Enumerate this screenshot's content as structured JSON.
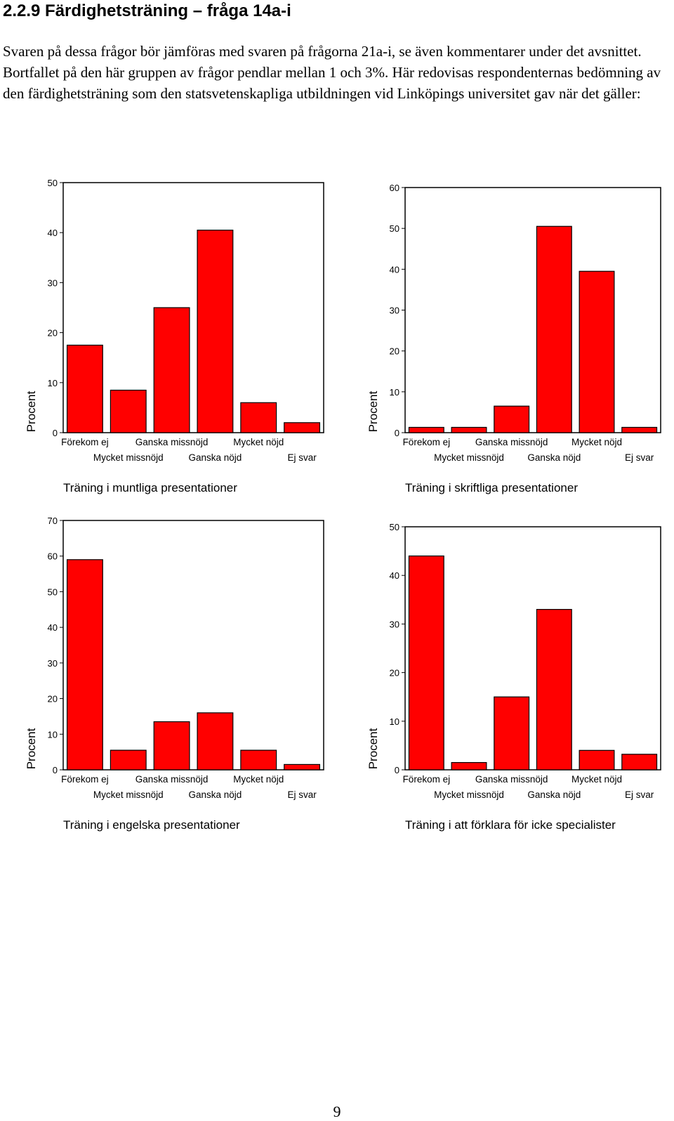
{
  "heading": "2.2.9 Färdighetsträning – fråga 14a-i",
  "intro": "Svaren på dessa frågor bör jämföras med svaren på frågorna 21a-i, se även kommentarer under det avsnittet. Bortfallet på den här gruppen av frågor pendlar mellan 1 och 3%. Här redovisas respondenternas bedömning av den färdighetsträning som den statsvetenskapliga utbildningen vid Linköpings universitet gav när det gäller:",
  "page_number": "9",
  "colors": {
    "bar": "#ff0000",
    "outline": "#000000"
  },
  "chart_data": [
    {
      "type": "bar",
      "title": "Träning i muntliga presentationer",
      "xlabel": "",
      "ylabel": "Procent",
      "categories": [
        "Förekom ej",
        "Mycket missnöjd",
        "Ganska missnöjd",
        "Ganska nöjd",
        "Mycket nöjd",
        "Ej svar"
      ],
      "values": [
        17.5,
        8.5,
        25,
        40.5,
        6,
        2
      ],
      "ylim": [
        0,
        50
      ],
      "yticks": [
        0,
        10,
        20,
        30,
        40,
        50
      ],
      "grid": false,
      "legend": "none"
    },
    {
      "type": "bar",
      "title": "Träning i skriftliga presentationer",
      "xlabel": "",
      "ylabel": "Procent",
      "categories": [
        "Förekom ej",
        "Mycket missnöjd",
        "Ganska missnöjd",
        "Ganska nöjd",
        "Mycket nöjd",
        "Ej svar"
      ],
      "values": [
        1.3,
        1.3,
        6.5,
        50.5,
        39.5,
        1.3
      ],
      "ylim": [
        0,
        60
      ],
      "yticks": [
        0,
        10,
        20,
        30,
        40,
        50,
        60
      ],
      "grid": false,
      "legend": "none"
    },
    {
      "type": "bar",
      "title": "Träning i engelska presentationer",
      "xlabel": "",
      "ylabel": "Procent",
      "categories": [
        "Förekom ej",
        "Mycket missnöjd",
        "Ganska missnöjd",
        "Ganska nöjd",
        "Mycket nöjd",
        "Ej svar"
      ],
      "values": [
        59,
        5.5,
        13.5,
        16,
        5.5,
        1.5
      ],
      "ylim": [
        0,
        70
      ],
      "yticks": [
        0,
        10,
        20,
        30,
        40,
        50,
        60,
        70
      ],
      "grid": false,
      "legend": "none"
    },
    {
      "type": "bar",
      "title": "Träning i att förklara för icke specialister",
      "xlabel": "",
      "ylabel": "Procent",
      "categories": [
        "Förekom ej",
        "Mycket missnöjd",
        "Ganska missnöjd",
        "Ganska nöjd",
        "Mycket nöjd",
        "Ej svar"
      ],
      "values": [
        44,
        1.5,
        15,
        33,
        4,
        3.2
      ],
      "ylim": [
        0,
        50
      ],
      "yticks": [
        0,
        10,
        20,
        30,
        40,
        50
      ],
      "grid": false,
      "legend": "none"
    }
  ]
}
